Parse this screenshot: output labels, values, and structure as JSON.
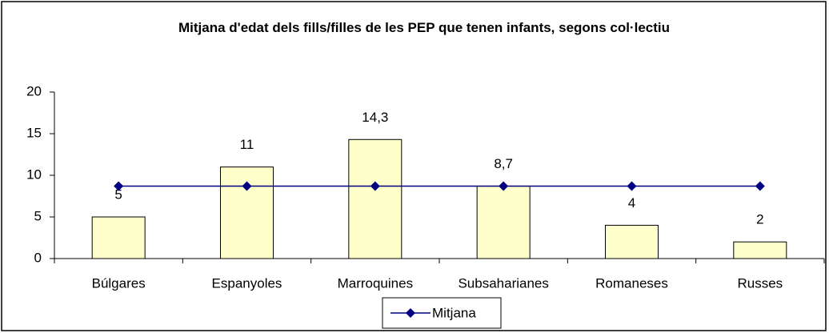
{
  "chart_data": {
    "type": "bar",
    "title": "Mitjana d'edat dels fills/filles de les PEP que tenen infants, segons col·lectiu",
    "categories": [
      "Búlgares",
      "Espanyoles",
      "Marroquines",
      "Subsaharianes",
      "Romaneses",
      "Russes"
    ],
    "values": [
      5,
      11,
      14.3,
      8.7,
      4,
      2
    ],
    "value_labels": [
      "5",
      "11",
      "14,3",
      "8,7",
      "4",
      "2"
    ],
    "color": "#ffffcc",
    "series": [
      {
        "name": "Mitjana",
        "type": "line",
        "color": "#000080",
        "values": [
          8.7,
          8.7,
          8.7,
          8.7,
          8.7,
          8.7
        ]
      }
    ],
    "ylim": [
      0,
      20
    ],
    "yticks": [
      0,
      5,
      10,
      15,
      20
    ],
    "grid": false,
    "legend": "bottom"
  }
}
